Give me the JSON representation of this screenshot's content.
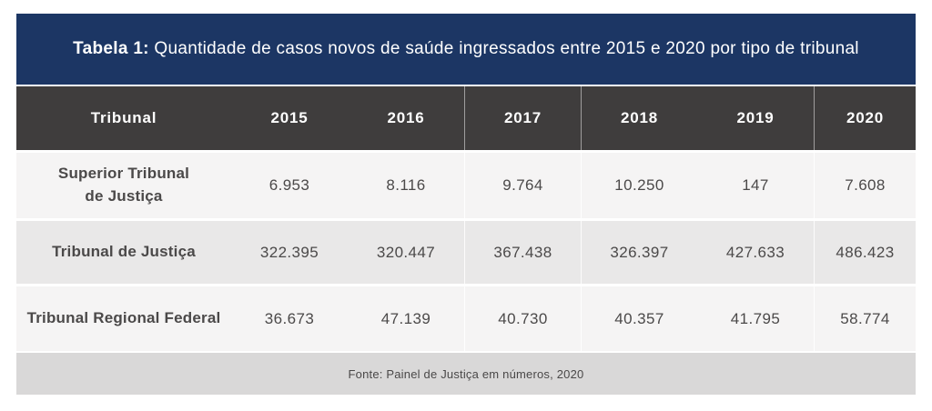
{
  "title": {
    "prefix": "Tabela 1:",
    "rest": " Quantidade de casos novos de saúde ingressados entre 2015 e 2020 por tipo de tribunal"
  },
  "row_labels": [
    [
      "Superior Tribunal",
      "de Justiça"
    ],
    [
      "Tribunal de Justiça",
      ""
    ],
    [
      "Tribunal Regional Federal",
      ""
    ]
  ],
  "source": "Fonte: Painel de Justiça em números, 2020",
  "colors": {
    "title_bg": "#1C3664",
    "header_bg": "#3F3D3D",
    "row_light": "#F5F4F4",
    "row_mid": "#E9E8E8",
    "source_bg": "#D9D8D8",
    "header_text": "#FFFFFF",
    "body_text": "#4B4949"
  },
  "chart_data": {
    "type": "table",
    "title": "Tabela 1: Quantidade de casos novos de saúde ingressados entre 2015 e 2020 por tipo de tribunal",
    "columns": [
      "Tribunal",
      "2015",
      "2016",
      "2017",
      "2018",
      "2019",
      "2020"
    ],
    "rows": [
      [
        "Superior Tribunal de Justiça",
        "6.953",
        "8.116",
        "9.764",
        "10.250",
        "147",
        "7.608"
      ],
      [
        "Tribunal de Justiça",
        "322.395",
        "320.447",
        "367.438",
        "326.397",
        "427.633",
        "486.423"
      ],
      [
        "Tribunal Regional Federal",
        "36.673",
        "47.139",
        "40.730",
        "40.357",
        "41.795",
        "58.774"
      ]
    ],
    "source": "Fonte: Painel de Justiça em números, 2020"
  }
}
